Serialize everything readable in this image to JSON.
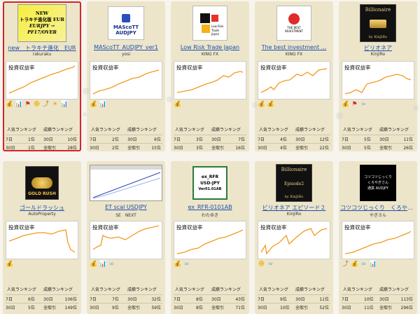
{
  "chart_label": "投資収益率",
  "rank_headers": {
    "popular": "人気ランキング",
    "performance": "成績ランキング"
  },
  "colors": {
    "accent_line": "#f29a1f",
    "link": "#1a4fb0",
    "selected_border": "#d4242c",
    "card_bg": "#ede5c9"
  },
  "cards": [
    {
      "title": "new　トラキチ進化　EUR",
      "author": "rakuraku",
      "thumb": {
        "lines": [
          "NEW",
          "トラキチ進化版 EUR",
          "EURJPY →",
          "PF17/OVER"
        ]
      },
      "icons": [
        "money-bag-icon",
        "blue-chart-icon",
        "red-flag-icon",
        "face-icon",
        "trend-icon",
        "sun-icon",
        "blue-chart-icon"
      ],
      "rank": {
        "d7_label": "7日",
        "d7_pop": "1位",
        "d30_pop_label": "30日",
        "d30_perf": "10位",
        "d30_label": "30日",
        "d30_pop": "1位",
        "all_label": "全取引",
        "all_perf": "28位"
      }
    },
    {
      "title": "MAScoTT_AUDJPY_ver1",
      "author": "yosi",
      "thumb": {
        "lines": [
          "MAScoTT",
          "AUDJPY"
        ]
      },
      "icons": [
        "money-bag-icon",
        "blue-chart-icon"
      ],
      "rank": {
        "d7_label": "7日",
        "d7_pop": "2位",
        "d30_pop_label": "30日",
        "d30_perf": "6位",
        "d30_label": "30日",
        "d30_pop": "2位",
        "all_label": "全取引",
        "all_perf": "15位"
      }
    },
    {
      "title": "Low Risk Trade Japan",
      "author": "KING FX",
      "thumb": {
        "lines": [
          "Low Risk",
          "Trade Japan"
        ]
      },
      "icons": [
        "money-bag-icon"
      ],
      "rank": {
        "d7_label": "7日",
        "d7_pop": "3位",
        "d30_pop_label": "30日",
        "d30_perf": "7位",
        "d30_label": "30日",
        "d30_pop": "3位",
        "all_label": "全取引",
        "all_perf": "16位"
      }
    },
    {
      "title": "The best investment ...",
      "author": "KING FX",
      "thumb": {
        "lines": [
          "THE BEST",
          "INVESTMENT"
        ]
      },
      "icons": [
        "money-bag-icon",
        "money-bag-icon"
      ],
      "rank": {
        "d7_label": "7日",
        "d7_pop": "4位",
        "d30_pop_label": "30日",
        "d30_perf": "12位",
        "d30_label": "30日",
        "d30_pop": "4位",
        "all_label": "全取引",
        "all_perf": "22位"
      }
    },
    {
      "title": "ビリオネア",
      "author": "KinJiRo",
      "thumb": {
        "lines": [
          "Billionaire",
          "by KinJiRo"
        ]
      },
      "icons": [
        "money-bag-icon",
        "red-flag-icon",
        "glasses-icon"
      ],
      "rank": {
        "d7_label": "7日",
        "d7_pop": "5位",
        "d30_pop_label": "30日",
        "d30_perf": "11位",
        "d30_label": "30日",
        "d30_pop": "5位",
        "all_label": "全取引",
        "all_perf": "26位"
      }
    },
    {
      "title": "ゴールドラッシュ",
      "author": "AutoProperty",
      "thumb": {
        "lines": [
          "GOLD RUSH"
        ]
      },
      "icons": [
        "money-bag-icon"
      ],
      "rank": {
        "d7_label": "7日",
        "d7_pop": "6位",
        "d30_pop_label": "30日",
        "d30_perf": "106位",
        "d30_label": "30日",
        "d30_pop": "5位",
        "all_label": "全取引",
        "all_perf": "149位"
      }
    },
    {
      "title": "ET scal USDJPY",
      "author": "SE　NEXT",
      "thumb": {
        "lines": []
      },
      "icons": [
        "money-bag-icon",
        "blue-chart-icon",
        "glasses-icon"
      ],
      "rank": {
        "d7_label": "7日",
        "d7_pop": "7位",
        "d30_pop_label": "30日",
        "d30_perf": "32位",
        "d30_label": "30日",
        "d30_pop": "9位",
        "all_label": "全取引",
        "all_perf": "59位"
      }
    },
    {
      "title": "ex_RFR-0101AB",
      "author": "わたゆき",
      "thumb": {
        "lines": [
          "ex_RFR",
          "USD-JPY",
          "Ver01.01AB"
        ]
      },
      "icons": [
        "money-bag-icon",
        "glasses-icon"
      ],
      "rank": {
        "d7_label": "7日",
        "d7_pop": "8位",
        "d30_pop_label": "30日",
        "d30_perf": "43位",
        "d30_label": "30日",
        "d30_pop": "8位",
        "all_label": "全取引",
        "all_perf": "71位"
      }
    },
    {
      "title": "ビリオネア エピソード２",
      "author": "KinJiRo",
      "thumb": {
        "lines": [
          "Billionaire",
          "Episode2",
          "by KinJiRo"
        ]
      },
      "icons": [
        "face-icon",
        "glasses-icon"
      ],
      "rank": {
        "d7_label": "7日",
        "d7_pop": "9位",
        "d30_pop_label": "30日",
        "d30_perf": "11位",
        "d30_label": "30日",
        "d30_pop": "10位",
        "all_label": "全取引",
        "all_perf": "52位"
      }
    },
    {
      "title": "コツコツじっくり　くろやぎ...",
      "author": "やぎさん",
      "thumb": {
        "lines": [
          "コツコツじっくり",
          "くろやぎさん",
          "通貨 AUDJPY"
        ]
      },
      "icons": [
        "trend-icon",
        "money-bag-icon",
        "glasses-icon",
        "blue-chart-icon"
      ],
      "rank": {
        "d7_label": "7日",
        "d7_pop": "10位",
        "d30_pop_label": "30日",
        "d30_perf": "113位",
        "d30_label": "30日",
        "d30_pop": "11位",
        "all_label": "全取引",
        "all_perf": "296位"
      }
    }
  ]
}
